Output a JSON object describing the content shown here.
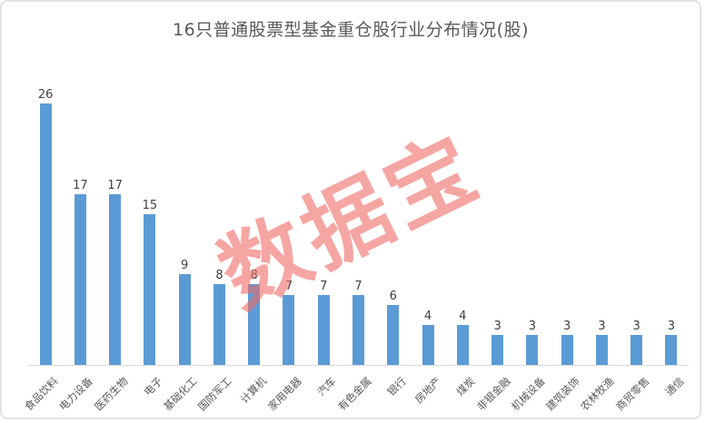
{
  "title": "16只普通股票型基金重仓股行业分布情况(股)",
  "watermark": {
    "text": "数据宝"
  },
  "chart_data": {
    "type": "bar",
    "title": "16只普通股票型基金重仓股行业分布情况(股)",
    "categories": [
      "食品饮料",
      "电力设备",
      "医药生物",
      "电子",
      "基础化工",
      "国防军工",
      "计算机",
      "家用电器",
      "汽车",
      "有色金属",
      "银行",
      "房地产",
      "煤炭",
      "非银金融",
      "机械设备",
      "建筑装饰",
      "农林牧渔",
      "商贸零售",
      "通信"
    ],
    "values": [
      26,
      17,
      17,
      15,
      9,
      8,
      8,
      7,
      7,
      7,
      6,
      4,
      4,
      3,
      3,
      3,
      3,
      3,
      3
    ],
    "xlabel": "",
    "ylabel": "",
    "ylim": [
      0,
      28
    ],
    "grid": false,
    "legend": false,
    "data_labels": true,
    "label_rotation_deg": -45
  },
  "style": {
    "bar_color": "#5B9BD5",
    "title_color": "#595959",
    "value_label_color": "#404040",
    "axis_label_color": "#595959",
    "axis_line_color": "#D9D9D9",
    "frame_border_color": "#E2E3E5",
    "watermark_color": "rgba(238,107,101,0.6)",
    "background": "#FFFFFF"
  }
}
